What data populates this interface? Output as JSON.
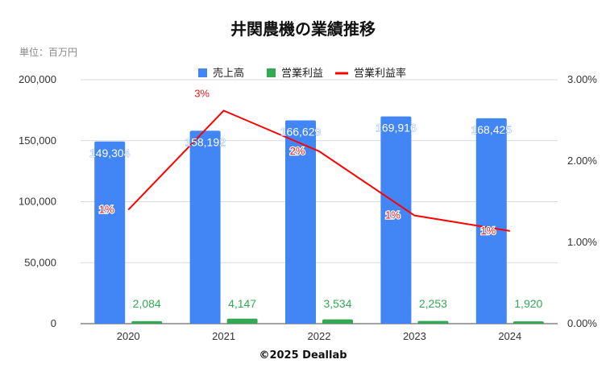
{
  "title": "井関農機の業績推移",
  "unit_label": "単位：百万円",
  "footer": "©2025 Deallab",
  "colors": {
    "sales": "#4285f4",
    "profit": "#34a853",
    "rate": "#ff0000",
    "grid": "#d9d9d9",
    "axis": "#444444"
  },
  "chart_data": {
    "type": "bar",
    "categories": [
      "2020",
      "2021",
      "2022",
      "2023",
      "2024"
    ],
    "series": [
      {
        "name": "売上高",
        "type": "bar",
        "axis": "left",
        "values": [
          149304,
          158192,
          166629,
          169916,
          168425
        ],
        "labels": [
          "149,304",
          "158,192",
          "166,629",
          "169,916",
          "168,425"
        ]
      },
      {
        "name": "営業利益",
        "type": "bar",
        "axis": "left",
        "values": [
          2084,
          4147,
          3534,
          2253,
          1920
        ],
        "labels": [
          "2,084",
          "4,147",
          "3,534",
          "2,253",
          "1,920"
        ]
      },
      {
        "name": "営業利益率",
        "type": "line",
        "axis": "right",
        "values": [
          1.4,
          2.62,
          2.12,
          1.33,
          1.14
        ],
        "labels": [
          "1%",
          "3%",
          "2%",
          "1%",
          "1%"
        ]
      }
    ],
    "y_left": {
      "min": 0,
      "max": 200000,
      "ticks": [
        0,
        50000,
        100000,
        150000,
        200000
      ],
      "tick_labels": [
        "0",
        "50,000",
        "100,000",
        "150,000",
        "200,000"
      ]
    },
    "y_right": {
      "min": 0,
      "max": 3,
      "ticks": [
        0,
        1,
        2,
        3
      ],
      "tick_labels": [
        "0.00%",
        "1.00%",
        "2.00%",
        "3.00%"
      ]
    },
    "grid": true,
    "legend_position": "top-center"
  }
}
